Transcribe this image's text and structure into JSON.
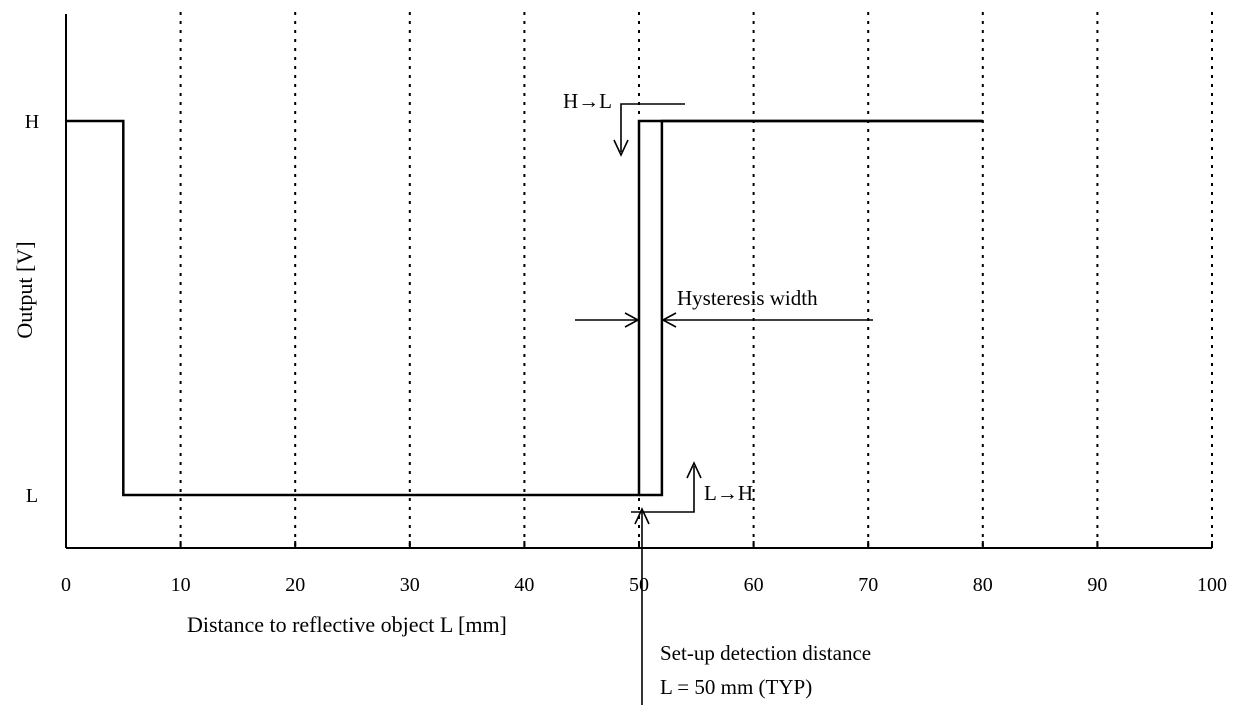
{
  "chart_data": {
    "type": "line",
    "title": "",
    "xlabel": "Distance to reflective object  L [mm]",
    "ylabel": "Output  [V]",
    "xlim": [
      0,
      100
    ],
    "x_ticks": [
      "0",
      "10",
      "20",
      "30",
      "40",
      "50",
      "60",
      "70",
      "80",
      "90",
      "100"
    ],
    "y_ticks": [
      "H",
      "L"
    ],
    "grid": "vertical dotted lines at each x tick",
    "series": [
      {
        "points": [
          {
            "x": 0,
            "y": "H"
          },
          {
            "x": 5,
            "y": "H"
          },
          {
            "x": 5,
            "y": "L"
          },
          {
            "x": 50,
            "y": "L"
          },
          {
            "x": 50,
            "y": "H"
          },
          {
            "x": 80,
            "y": "H"
          }
        ]
      },
      {
        "points": [
          {
            "x": 50,
            "y": "L"
          },
          {
            "x": 52,
            "y": "L"
          },
          {
            "x": 52,
            "y": "H"
          },
          {
            "x": 80,
            "y": "H"
          }
        ]
      }
    ],
    "annotations": {
      "h_to_l": "H→L",
      "l_to_h": "L→H",
      "hysteresis": "Hysteresis width",
      "setup_line1": "Set-up detection distance",
      "setup_line2": "L = 50 mm (TYP)"
    }
  }
}
